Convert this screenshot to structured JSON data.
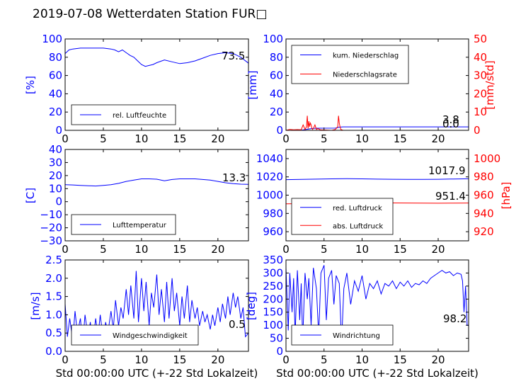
{
  "title": "2019-07-08 Wetterdaten Station FUR□",
  "xlabel": "Std 00:00:00 UTC (+-22 Std Lokalzeit)",
  "x_ticks": [
    0,
    5,
    10,
    15,
    20
  ],
  "colors": {
    "axis_left": "#0000ff",
    "axis_right": "#ff0000",
    "series_blue": "#0000ff",
    "series_red": "#ff0000"
  },
  "chart_data": [
    {
      "type": "line",
      "name": "humidity",
      "ylabel": "[%]",
      "xlim": [
        0,
        24
      ],
      "ylim": [
        0,
        100
      ],
      "y_ticks": [
        0,
        20,
        40,
        60,
        80,
        100
      ],
      "legend": [
        "rel. Luftfeuchte"
      ],
      "last_value_label": "73.5",
      "series": [
        {
          "name": "rel. Luftfeuchte",
          "color": "#0000ff",
          "x": [
            0,
            0.5,
            1,
            2,
            3,
            4,
            5,
            6,
            6.5,
            7,
            7.5,
            8,
            8.5,
            9,
            9.5,
            10,
            10.5,
            11,
            11.5,
            12,
            13,
            14,
            15,
            16,
            17,
            18,
            19,
            20,
            21,
            22,
            23,
            24
          ],
          "y": [
            84,
            88,
            89,
            90,
            90,
            90,
            90,
            89,
            88,
            86,
            88,
            85,
            82,
            80,
            76,
            72,
            70,
            71,
            72,
            74,
            77,
            75,
            73,
            74,
            76,
            79,
            82,
            84,
            85,
            84,
            80,
            73.5
          ]
        }
      ]
    },
    {
      "type": "line",
      "name": "precipitation",
      "ylabel": "[mm]",
      "ylabel_right": "[mm/std]",
      "xlim": [
        0,
        24
      ],
      "ylim": [
        0,
        100
      ],
      "ylim_right": [
        0,
        50
      ],
      "y_ticks": [
        0,
        20,
        40,
        60,
        80,
        100
      ],
      "y_ticks_right": [
        0,
        10,
        20,
        30,
        40,
        50
      ],
      "legend": [
        "kum. Niederschlag",
        "Niederschlagsrate"
      ],
      "last_value_labels": [
        "3.8",
        "0.0"
      ],
      "series": [
        {
          "name": "kum. Niederschlag",
          "color": "#0000ff",
          "axis": "left",
          "x": [
            0,
            2,
            2.5,
            3,
            3.5,
            4,
            6.5,
            7,
            7.5,
            10,
            15,
            20,
            24
          ],
          "y": [
            0,
            0.1,
            0.8,
            1.5,
            2,
            2.3,
            2.4,
            3.5,
            3.8,
            3.8,
            3.8,
            3.8,
            3.8
          ]
        },
        {
          "name": "Niederschlagsrate",
          "color": "#ff0000",
          "axis": "right",
          "x": [
            0,
            0.5,
            1,
            1.5,
            2,
            2.25,
            2.5,
            2.7,
            2.8,
            2.9,
            3.0,
            3.1,
            3.2,
            3.3,
            3.4,
            3.5,
            3.6,
            3.8,
            4.0,
            4.2,
            4.5,
            5,
            6,
            6.5,
            6.8,
            6.9,
            7.0,
            7.1,
            7.2,
            7.5,
            8,
            24
          ],
          "y": [
            0,
            0.5,
            0.3,
            0.4,
            0.3,
            3,
            0.5,
            2,
            8,
            1,
            5,
            2,
            4,
            3,
            1,
            0.5,
            1,
            3,
            0.5,
            1,
            0.3,
            0.2,
            0,
            0.5,
            2,
            8,
            4,
            2,
            0.5,
            0,
            0,
            0
          ]
        }
      ]
    },
    {
      "type": "line",
      "name": "temperature",
      "ylabel": "[C]",
      "xlim": [
        0,
        24
      ],
      "ylim": [
        -30,
        40
      ],
      "y_ticks": [
        -30,
        -20,
        -10,
        0,
        10,
        20,
        30,
        40
      ],
      "legend": [
        "Lufttemperatur"
      ],
      "last_value_label": "13.3",
      "series": [
        {
          "name": "Lufttemperatur",
          "color": "#0000ff",
          "x": [
            0,
            1,
            2,
            3,
            4,
            5,
            6,
            7,
            8,
            9,
            10,
            11,
            12,
            13,
            14,
            15,
            16,
            17,
            18,
            19,
            20,
            21,
            22,
            23,
            24
          ],
          "y": [
            13,
            12.8,
            12.5,
            12.2,
            12,
            12.5,
            13,
            14,
            15.5,
            16.5,
            17.5,
            17.5,
            17.2,
            16,
            17,
            17.5,
            17.5,
            17.5,
            17,
            16.5,
            15.5,
            14.5,
            13.8,
            13.4,
            13.3
          ]
        }
      ]
    },
    {
      "type": "line",
      "name": "pressure",
      "ylabel": "",
      "ylabel_right": "[hPa]",
      "xlim": [
        0,
        24
      ],
      "ylim": [
        950,
        1050
      ],
      "ylim_right": [
        910,
        1010
      ],
      "y_ticks": [
        960,
        980,
        1000,
        1020,
        1040
      ],
      "y_ticks_right": [
        920,
        940,
        960,
        980,
        1000
      ],
      "legend": [
        "red. Luftdruck",
        "abs. Luftdruck"
      ],
      "last_value_labels": [
        "1017.9",
        "951.4"
      ],
      "series": [
        {
          "name": "red. Luftdruck",
          "color": "#0000ff",
          "axis": "left",
          "x": [
            0,
            2,
            4,
            6,
            8,
            10,
            12,
            14,
            16,
            18,
            20,
            22,
            24
          ],
          "y": [
            1017,
            1017.2,
            1017.5,
            1017.8,
            1018,
            1017.8,
            1017.5,
            1017.4,
            1017.3,
            1017.2,
            1017.4,
            1017.7,
            1017.9
          ]
        },
        {
          "name": "abs. Luftdruck",
          "color": "#ff0000",
          "axis": "right",
          "x": [
            0,
            2,
            4,
            6,
            8,
            10,
            12,
            14,
            16,
            18,
            20,
            22,
            24
          ],
          "y": [
            950.5,
            950.7,
            951,
            951.3,
            951.6,
            951.8,
            951.7,
            951.5,
            951.4,
            951.3,
            951.2,
            951.3,
            951.4
          ]
        }
      ]
    },
    {
      "type": "line",
      "name": "wind_speed",
      "ylabel": "[m/s]",
      "xlim": [
        0,
        24
      ],
      "ylim": [
        0,
        2.5
      ],
      "y_ticks": [
        0.0,
        0.5,
        1.0,
        1.5,
        2.0,
        2.5
      ],
      "legend": [
        "Windgeschwindigkeit"
      ],
      "last_value_label": "0.5",
      "series": [
        {
          "name": "Windgeschwindigkeit",
          "color": "#0000ff",
          "x": [
            0,
            0.3,
            0.6,
            1,
            1.3,
            1.6,
            2,
            2.3,
            2.6,
            3,
            3.3,
            3.6,
            4,
            4.3,
            4.6,
            5,
            5.3,
            5.6,
            6,
            6.3,
            6.6,
            7,
            7.3,
            7.6,
            8,
            8.3,
            8.6,
            9,
            9.3,
            9.6,
            10,
            10.3,
            10.6,
            11,
            11.3,
            11.6,
            12,
            12.3,
            12.6,
            13,
            13.3,
            13.6,
            14,
            14.3,
            14.6,
            15,
            15.3,
            15.6,
            16,
            16.3,
            16.6,
            17,
            17.3,
            17.6,
            18,
            18.3,
            18.6,
            19,
            19.3,
            19.6,
            20,
            20.3,
            20.6,
            21,
            21.3,
            21.6,
            22,
            22.3,
            22.6,
            23,
            23.3,
            23.6,
            24
          ],
          "y": [
            1.3,
            0.4,
            0.9,
            0.3,
            1.1,
            0.5,
            0.9,
            0.2,
            1.0,
            0.4,
            0.8,
            0.2,
            0.9,
            0.4,
            1.0,
            0.3,
            0.8,
            0.5,
            1.1,
            0.6,
            1.4,
            0.7,
            1.2,
            0.9,
            1.7,
            1.0,
            1.8,
            0.9,
            2.2,
            0.8,
            2.0,
            1.1,
            1.9,
            0.7,
            1.6,
            1.2,
            2.1,
            1.0,
            1.7,
            0.8,
            1.9,
            0.9,
            2.0,
            1.1,
            1.6,
            0.7,
            1.5,
            0.9,
            1.8,
            0.8,
            1.4,
            0.9,
            1.2,
            0.7,
            1.1,
            0.8,
            1.0,
            0.6,
            1.0,
            0.7,
            1.2,
            0.8,
            1.3,
            0.9,
            1.5,
            1.0,
            1.6,
            1.2,
            1.5,
            0.9,
            1.2,
            0.4,
            0.5
          ]
        }
      ]
    },
    {
      "type": "line",
      "name": "wind_direction",
      "ylabel": "[deg]",
      "xlim": [
        0,
        24
      ],
      "ylim": [
        0,
        350
      ],
      "y_ticks": [
        0,
        50,
        100,
        150,
        200,
        250,
        300,
        350
      ],
      "legend": [
        "Windrichtung"
      ],
      "last_value_label": "98.2",
      "series": [
        {
          "name": "Windrichtung",
          "color": "#0000ff",
          "x": [
            0,
            0.3,
            0.5,
            0.8,
            1.0,
            1.2,
            1.5,
            1.8,
            2.0,
            2.2,
            2.5,
            2.8,
            3.0,
            3.3,
            3.6,
            4.0,
            4.3,
            4.6,
            5.0,
            5.3,
            5.6,
            6.0,
            6.3,
            6.6,
            7.0,
            7.3,
            7.6,
            8,
            8.5,
            9,
            9.5,
            10,
            10.5,
            11,
            11.5,
            12,
            12.5,
            13,
            13.5,
            14,
            14.5,
            15,
            15.5,
            16,
            16.5,
            17,
            17.5,
            18,
            18.5,
            19,
            19.5,
            20,
            20.5,
            21,
            21.5,
            22,
            22.5,
            23,
            23.2,
            23.4,
            23.6,
            23.8,
            24
          ],
          "y": [
            320,
            80,
            300,
            150,
            280,
            60,
            310,
            120,
            260,
            40,
            300,
            200,
            280,
            100,
            320,
            240,
            60,
            300,
            330,
            120,
            280,
            310,
            180,
            290,
            260,
            30,
            240,
            300,
            180,
            270,
            230,
            290,
            200,
            260,
            240,
            270,
            220,
            260,
            250,
            270,
            240,
            265,
            250,
            270,
            245,
            260,
            255,
            270,
            260,
            280,
            290,
            300,
            310,
            300,
            305,
            290,
            300,
            295,
            270,
            150,
            250,
            100,
            98.2
          ]
        }
      ]
    }
  ]
}
